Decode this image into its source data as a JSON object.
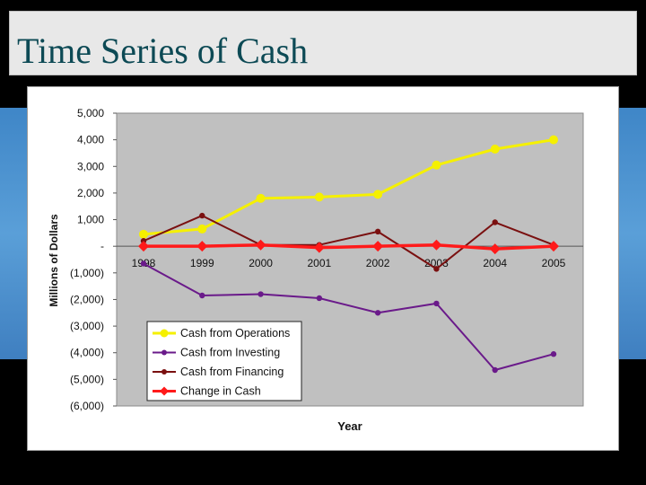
{
  "slide": {
    "title": "Time Series of Cash"
  },
  "colors": {
    "plot_bg": "#c0c0c0",
    "title_text": "#0d4a55",
    "background_band": "#4a90d0"
  },
  "chart_data": {
    "type": "line",
    "title": "",
    "xlabel": "Year",
    "ylabel": "Millions  of Dollars",
    "categories": [
      "1998",
      "1999",
      "2000",
      "2001",
      "2002",
      "2003",
      "2004",
      "2005"
    ],
    "ylim": [
      -6000,
      5000
    ],
    "yticks": [
      {
        "value": 5000,
        "label": "5,000"
      },
      {
        "value": 4000,
        "label": "4,000"
      },
      {
        "value": 3000,
        "label": "3,000"
      },
      {
        "value": 2000,
        "label": "2,000"
      },
      {
        "value": 1000,
        "label": "1,000"
      },
      {
        "value": 0,
        "label": "-"
      },
      {
        "value": -1000,
        "label": "(1,000)"
      },
      {
        "value": -2000,
        "label": "(2,000)"
      },
      {
        "value": -3000,
        "label": "(3,000)"
      },
      {
        "value": -4000,
        "label": "(4,000)"
      },
      {
        "value": -5000,
        "label": "(5,000)"
      },
      {
        "value": -6000,
        "label": "(6,000)"
      }
    ],
    "grid": false,
    "legend": "bottom-left",
    "series": [
      {
        "name": "Cash from Operations",
        "color": "#f5f000",
        "marker": "circle",
        "values": [
          450,
          650,
          1800,
          1850,
          1950,
          3050,
          3650,
          4000
        ]
      },
      {
        "name": "Cash from Investing",
        "color": "#6a1a8a",
        "marker": "circle",
        "values": [
          -650,
          -1850,
          -1800,
          -1950,
          -2500,
          -2150,
          -4650,
          -4050
        ]
      },
      {
        "name": "Cash from Financing",
        "color": "#7a1010",
        "marker": "circle",
        "values": [
          200,
          1150,
          50,
          50,
          550,
          -850,
          900,
          50
        ]
      },
      {
        "name": "Change in Cash",
        "color": "#ff1a1a",
        "marker": "diamond",
        "values": [
          0,
          0,
          50,
          -50,
          0,
          50,
          -100,
          0
        ]
      }
    ]
  }
}
